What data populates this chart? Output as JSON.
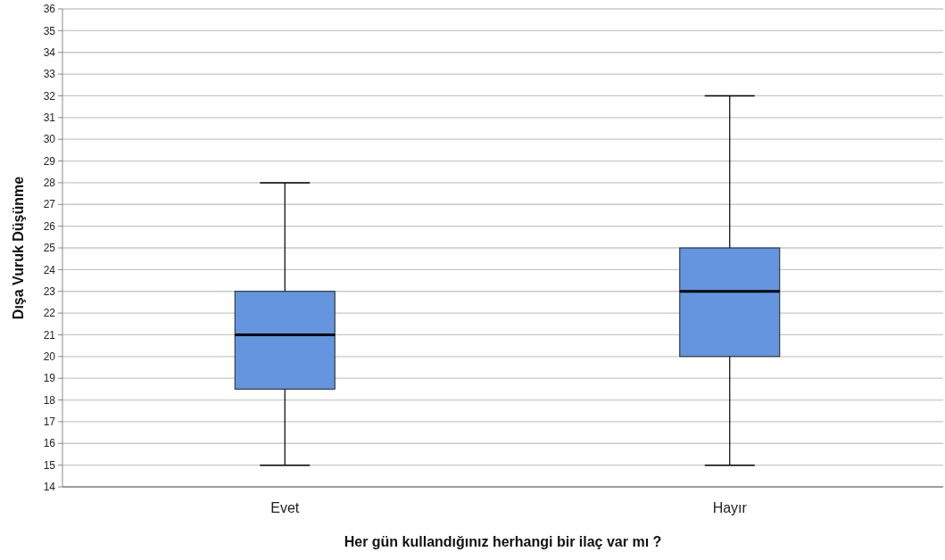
{
  "chart_data": {
    "type": "box",
    "xlabel": "Her gün kullandığınız herhangi bir ilaç var mı ?",
    "ylabel": "Dışa Vuruk Düşünme",
    "categories": [
      "Evet",
      "Hayır"
    ],
    "color": "#6495de",
    "boxes": [
      {
        "low": 15,
        "q1": 18.5,
        "median": 21,
        "q3": 23,
        "high": 28
      },
      {
        "low": 15,
        "q1": 20,
        "median": 23,
        "q3": 25,
        "high": 32
      }
    ],
    "ylim": [
      14,
      36
    ],
    "yticks": [
      14,
      15,
      16,
      17,
      18,
      19,
      20,
      21,
      22,
      23,
      24,
      25,
      26,
      27,
      28,
      29,
      30,
      31,
      32,
      33,
      34,
      35,
      36
    ],
    "grid": "y"
  }
}
